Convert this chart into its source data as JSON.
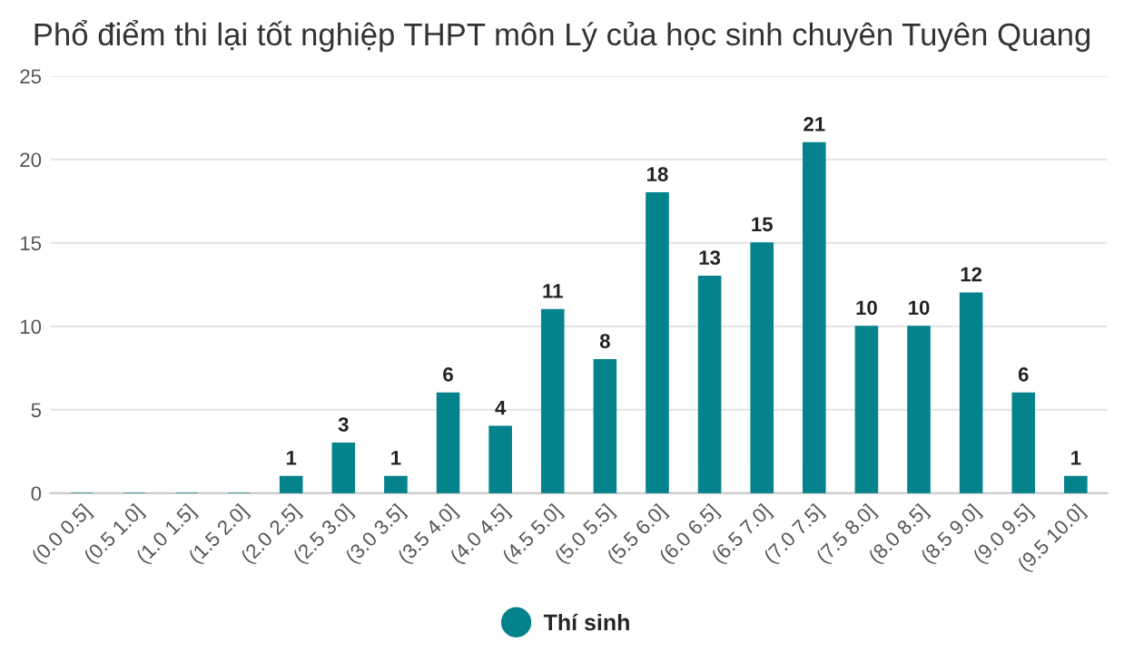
{
  "chart_data": {
    "type": "bar",
    "title": "Phổ điểm thi lại tốt nghiệp THPT môn Lý của học sinh chuyên Tuyên Quang",
    "categories": [
      "(0.0 0.5]",
      "(0.5 1.0]",
      "(1.0 1.5]",
      "(1.5 2.0]",
      "(2.0 2.5]",
      "(2.5 3.0]",
      "(3.0 3.5]",
      "(3.5 4.0]",
      "(4.0 4.5]",
      "(4.5 5.0]",
      "(5.0 5.5]",
      "(5.5 6.0]",
      "(6.0 6.5]",
      "(6.5 7.0]",
      "(7.0 7.5]",
      "(7.5 8.0]",
      "(8.0 8.5]",
      "(8.5 9.0]",
      "(9.0 9.5]",
      "(9.5 10.0]"
    ],
    "series": [
      {
        "name": "Thí sinh",
        "color": "#05838d",
        "values": [
          0,
          0,
          0,
          0,
          1,
          3,
          1,
          6,
          4,
          11,
          8,
          18,
          13,
          15,
          21,
          10,
          10,
          12,
          6,
          1
        ],
        "value_labels": [
          null,
          null,
          null,
          null,
          "1",
          "3",
          "1",
          "6",
          "4",
          "11",
          "8",
          "18",
          "13",
          "15",
          "21",
          "10",
          "10",
          "12",
          "6",
          "1"
        ]
      }
    ],
    "ylim": [
      0,
      25
    ],
    "yticks": [
      0,
      5,
      10,
      15,
      20,
      25
    ],
    "grid": "y",
    "legend": "bottom",
    "marker": "circle"
  }
}
